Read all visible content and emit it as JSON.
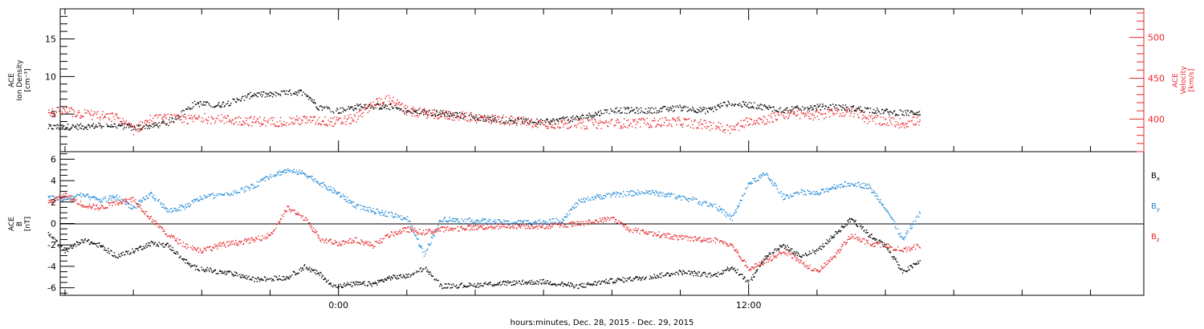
{
  "chart_data": [
    {
      "type": "scatter",
      "panel": "top",
      "left_axis": {
        "label_lines": [
          "ACE",
          "Ion Density",
          "[cm⁻³]"
        ],
        "range": [
          0,
          19
        ],
        "ticks": [
          5,
          10,
          15
        ]
      },
      "right_axis": {
        "label_lines": [
          "ACE",
          "Velocity",
          "[km/s]"
        ],
        "range": [
          360,
          535
        ],
        "ticks": [
          400,
          450,
          500
        ],
        "color": "#e8262b"
      },
      "series": [
        {
          "color": "#000000",
          "axis": "left",
          "keypoints": [
            [
              -8.5,
              3.3
            ],
            [
              -7.5,
              3.4
            ],
            [
              -6.5,
              3.6
            ],
            [
              -6,
              3.2
            ],
            [
              -5,
              3.8
            ],
            [
              -4.2,
              6.5
            ],
            [
              -3.6,
              6.2
            ],
            [
              -3,
              6.8
            ],
            [
              -2.5,
              7.7
            ],
            [
              -2,
              7.6
            ],
            [
              -1.5,
              7.9
            ],
            [
              -1,
              8.0
            ],
            [
              -0.6,
              6.0
            ],
            [
              0,
              5.5
            ],
            [
              0.7,
              6.2
            ],
            [
              1.5,
              6.0
            ],
            [
              2,
              5.4
            ],
            [
              3,
              5.2
            ],
            [
              4,
              4.6
            ],
            [
              5,
              4.2
            ],
            [
              6,
              4.0
            ],
            [
              7,
              4.5
            ],
            [
              8,
              5.6
            ],
            [
              9,
              5.5
            ],
            [
              10,
              5.9
            ],
            [
              10.8,
              5.5
            ],
            [
              11.3,
              6.4
            ],
            [
              12,
              6.3
            ],
            [
              13,
              5.6
            ],
            [
              14,
              6.0
            ],
            [
              14.6,
              6.0
            ],
            [
              15.5,
              5.6
            ],
            [
              16.5,
              5.2
            ],
            [
              17,
              5.3
            ]
          ]
        },
        {
          "color": "#e8262b",
          "axis": "right",
          "keypoints": [
            [
              -8.5,
              408
            ],
            [
              -8,
              410
            ],
            [
              -7.5,
              407
            ],
            [
              -6.5,
              402
            ],
            [
              -6,
              387
            ],
            [
              -5.5,
              400
            ],
            [
              -5,
              401
            ],
            [
              -4.5,
              399
            ],
            [
              -4,
              402
            ],
            [
              -3,
              399
            ],
            [
              -2,
              397
            ],
            [
              -1,
              399
            ],
            [
              0,
              397
            ],
            [
              0.5,
              402
            ],
            [
              1,
              420
            ],
            [
              1.5,
              425
            ],
            [
              2,
              410
            ],
            [
              3,
              406
            ],
            [
              4,
              402
            ],
            [
              5,
              399
            ],
            [
              6,
              395
            ],
            [
              7,
              394
            ],
            [
              8,
              395
            ],
            [
              9,
              396
            ],
            [
              10,
              397
            ],
            [
              11,
              392
            ],
            [
              11.5,
              388
            ],
            [
              12,
              399
            ],
            [
              12.5,
              400
            ],
            [
              13,
              406
            ],
            [
              13.5,
              407
            ],
            [
              14,
              405
            ],
            [
              14.5,
              409
            ],
            [
              15,
              410
            ],
            [
              15.5,
              400
            ],
            [
              16,
              398
            ],
            [
              16.5,
              395
            ],
            [
              17,
              399
            ]
          ]
        }
      ]
    },
    {
      "type": "scatter",
      "panel": "bottom",
      "left_axis": {
        "label_lines": [
          "ACE",
          "B",
          "[nT]"
        ],
        "range": [
          -6.7,
          6.7
        ],
        "ticks": [
          -6,
          -4,
          -2,
          0,
          2,
          4,
          6
        ]
      },
      "zero_line": true,
      "x_axis": {
        "label": "hours:minutes, Dec. 28, 2015 - Dec. 29, 2015",
        "range": [
          -8.14,
          23.56
        ],
        "tick_labels": [
          {
            "x": 0,
            "label": "0:00"
          },
          {
            "x": 12,
            "label": "12:00"
          }
        ],
        "minor_tick_step": 2
      },
      "legend": [
        {
          "label": "B",
          "sub": "x",
          "color": "#000000"
        },
        {
          "label": "B",
          "sub": "y",
          "color": "#1e88d6"
        },
        {
          "label": "B",
          "sub": "z",
          "color": "#e8262b"
        }
      ],
      "series": [
        {
          "name": "Bx",
          "color": "#000000",
          "keypoints": [
            [
              -8.5,
              -1.0
            ],
            [
              -8,
              -2.5
            ],
            [
              -7.5,
              -1.5
            ],
            [
              -7,
              -2.0
            ],
            [
              -6.5,
              -3.0
            ],
            [
              -6,
              -2.5
            ],
            [
              -5.5,
              -1.8
            ],
            [
              -5,
              -2.0
            ],
            [
              -4.3,
              -4.0
            ],
            [
              -3.5,
              -4.5
            ],
            [
              -3,
              -4.7
            ],
            [
              -2.5,
              -5.2
            ],
            [
              -1.5,
              -5.0
            ],
            [
              -1,
              -4.0
            ],
            [
              -0.5,
              -4.8
            ],
            [
              -0.2,
              -5.8
            ],
            [
              0.5,
              -5.6
            ],
            [
              1,
              -5.6
            ],
            [
              1.5,
              -5.0
            ],
            [
              2.2,
              -4.8
            ],
            [
              2.5,
              -4.0
            ],
            [
              3,
              -5.8
            ],
            [
              4,
              -5.7
            ],
            [
              5,
              -5.5
            ],
            [
              6,
              -5.4
            ],
            [
              7,
              -5.8
            ],
            [
              8,
              -5.3
            ],
            [
              9,
              -5.0
            ],
            [
              10,
              -4.5
            ],
            [
              11,
              -4.8
            ],
            [
              11.5,
              -4.0
            ],
            [
              12,
              -5.5
            ],
            [
              12.5,
              -3.0
            ],
            [
              13,
              -2.0
            ],
            [
              13.5,
              -3.0
            ],
            [
              14,
              -2.5
            ],
            [
              14.5,
              -1.0
            ],
            [
              15,
              0.5
            ],
            [
              15.5,
              -1.0
            ],
            [
              16,
              -2.0
            ],
            [
              16.5,
              -4.5
            ],
            [
              17,
              -3.5
            ]
          ]
        },
        {
          "name": "By",
          "color": "#1e88d6",
          "keypoints": [
            [
              -8.5,
              2.5
            ],
            [
              -8,
              2.3
            ],
            [
              -7.5,
              2.7
            ],
            [
              -7,
              2.2
            ],
            [
              -6.5,
              2.5
            ],
            [
              -6,
              1.5
            ],
            [
              -5.5,
              2.8
            ],
            [
              -5,
              1.2
            ],
            [
              -4.5,
              1.6
            ],
            [
              -4,
              2.5
            ],
            [
              -3.5,
              2.7
            ],
            [
              -3,
              3.0
            ],
            [
              -2.5,
              3.5
            ],
            [
              -2,
              4.5
            ],
            [
              -1.5,
              5.0
            ],
            [
              -1,
              4.7
            ],
            [
              -0.5,
              3.7
            ],
            [
              0,
              2.8
            ],
            [
              0.5,
              1.7
            ],
            [
              1,
              1.2
            ],
            [
              1.5,
              0.9
            ],
            [
              2,
              0.5
            ],
            [
              2.5,
              -2.8
            ],
            [
              3,
              0.5
            ],
            [
              3.5,
              0.3
            ],
            [
              4,
              0.3
            ],
            [
              5,
              0.1
            ],
            [
              6,
              0.2
            ],
            [
              6.5,
              0.3
            ],
            [
              7,
              2.0
            ],
            [
              7.5,
              2.5
            ],
            [
              8,
              2.7
            ],
            [
              9,
              3.0
            ],
            [
              10,
              2.5
            ],
            [
              11,
              1.7
            ],
            [
              11.5,
              0.5
            ],
            [
              12,
              3.8
            ],
            [
              12.5,
              4.7
            ],
            [
              13,
              2.5
            ],
            [
              13.5,
              3.0
            ],
            [
              14,
              2.8
            ],
            [
              14.5,
              3.5
            ],
            [
              15,
              3.8
            ],
            [
              15.5,
              3.5
            ],
            [
              16,
              1.5
            ],
            [
              16.5,
              -1.5
            ],
            [
              17,
              1.0
            ]
          ]
        },
        {
          "name": "Bz",
          "color": "#e8262b",
          "keypoints": [
            [
              -8.5,
              2.0
            ],
            [
              -8,
              2.7
            ],
            [
              -7.5,
              1.8
            ],
            [
              -7,
              1.5
            ],
            [
              -6.5,
              2.0
            ],
            [
              -6,
              2.3
            ],
            [
              -5.5,
              0.5
            ],
            [
              -5,
              -1.0
            ],
            [
              -4.5,
              -2.0
            ],
            [
              -4,
              -2.5
            ],
            [
              -3.5,
              -2.0
            ],
            [
              -2.5,
              -1.5
            ],
            [
              -2,
              -1.0
            ],
            [
              -1.5,
              1.5
            ],
            [
              -1,
              0.5
            ],
            [
              -0.5,
              -1.5
            ],
            [
              0,
              -1.8
            ],
            [
              0.5,
              -1.5
            ],
            [
              1,
              -2.0
            ],
            [
              1.5,
              -1.0
            ],
            [
              2,
              -0.5
            ],
            [
              2.5,
              -0.8
            ],
            [
              3,
              -0.5
            ],
            [
              4,
              -0.3
            ],
            [
              5,
              -0.2
            ],
            [
              6,
              -0.2
            ],
            [
              7,
              0.0
            ],
            [
              8,
              0.5
            ],
            [
              8.5,
              -0.5
            ],
            [
              9,
              -0.8
            ],
            [
              10,
              -1.3
            ],
            [
              11,
              -1.5
            ],
            [
              11.5,
              -2.0
            ],
            [
              12,
              -4.2
            ],
            [
              12.5,
              -3.5
            ],
            [
              13,
              -2.5
            ],
            [
              13.5,
              -3.5
            ],
            [
              14,
              -4.5
            ],
            [
              14.5,
              -3.0
            ],
            [
              15,
              -1.0
            ],
            [
              15.5,
              -1.8
            ],
            [
              16,
              -2.0
            ],
            [
              16.5,
              -2.5
            ],
            [
              17,
              -2.0
            ]
          ]
        }
      ]
    }
  ]
}
